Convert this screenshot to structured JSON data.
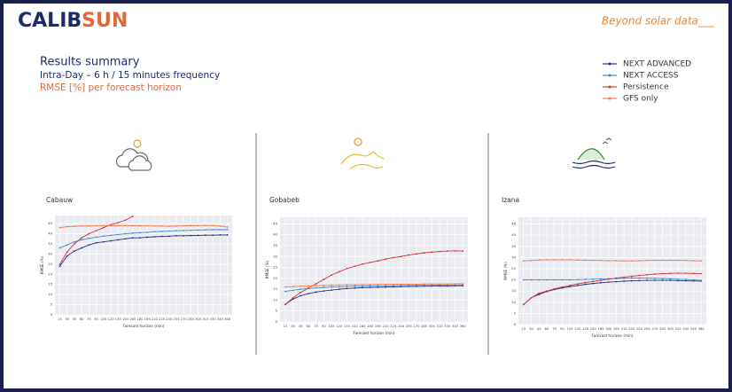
{
  "header": {
    "logo_a": "CALIB",
    "logo_b": "SUN",
    "tagline": "Beyond solar data___",
    "title": "Results summary",
    "subtitle": "Intra-Day  –  6 h / 15 minutes frequency",
    "metric": "RMSE [%] per forecast horizon"
  },
  "chart_data": [
    {
      "type": "line",
      "title": "Cabauw",
      "x_label": "Forecast horizon (min)",
      "y_label": "RMSE (%)",
      "x": [
        15,
        30,
        45,
        60,
        75,
        90,
        105,
        120,
        135,
        150,
        165,
        180,
        195,
        210,
        225,
        240,
        255,
        270,
        285,
        300,
        315,
        330,
        345,
        360
      ],
      "xlim": [
        5,
        370
      ],
      "xticks": [
        15,
        30,
        45,
        60,
        75,
        90,
        105,
        120,
        135,
        150,
        165,
        180,
        195,
        210,
        225,
        240,
        255,
        270,
        285,
        300,
        315,
        330,
        345,
        360
      ],
      "ylim": [
        0,
        49
      ],
      "yticks": [
        0,
        5,
        10,
        15,
        20,
        25,
        30,
        35,
        40,
        45
      ],
      "grid": true,
      "series": [
        {
          "name": "NEXT ADVANCED",
          "color": "#2b2f7a",
          "values": [
            24,
            29,
            31.5,
            33,
            34.5,
            35.5,
            36,
            36.5,
            37,
            37.5,
            38,
            38,
            38.3,
            38.5,
            38.7,
            38.8,
            39,
            39,
            39.1,
            39.2,
            39.3,
            39.3,
            39.4,
            39.4
          ]
        },
        {
          "name": "NEXT ACCESS",
          "color": "#3f8ed8",
          "values": [
            33,
            34.5,
            36,
            37,
            37.7,
            38.3,
            38.8,
            39.2,
            39.6,
            40,
            40.3,
            40.5,
            40.7,
            41,
            41.2,
            41.3,
            41.5,
            41.6,
            41.7,
            41.8,
            41.9,
            42,
            42,
            42
          ]
        },
        {
          "name": "Persistence",
          "color": "#d1353c",
          "values": [
            25,
            31,
            35,
            38,
            40,
            41.5,
            43,
            44.5,
            45.5,
            46.7,
            48.5,
            null,
            null,
            null,
            null,
            null,
            null,
            null,
            null,
            null,
            null,
            null,
            null,
            null
          ]
        },
        {
          "name": "GFS only",
          "color": "#f07a50",
          "values": [
            43,
            43.5,
            43.7,
            43.8,
            43.8,
            43.9,
            44,
            44,
            44,
            44,
            44,
            43.9,
            43.9,
            43.8,
            43.8,
            43.7,
            43.8,
            43.9,
            44,
            44,
            44.1,
            44,
            43.8,
            43.3
          ]
        }
      ]
    },
    {
      "type": "line",
      "title": "Gobabeb",
      "x_label": "Forecast horizon (min)",
      "y_label": "RMSE (%)",
      "x": [
        15,
        30,
        45,
        60,
        75,
        90,
        105,
        120,
        135,
        150,
        165,
        180,
        195,
        210,
        225,
        240,
        255,
        270,
        285,
        300,
        315,
        330,
        345,
        360
      ],
      "xlim": [
        5,
        370
      ],
      "xticks": [
        15,
        30,
        45,
        60,
        75,
        90,
        105,
        120,
        135,
        150,
        165,
        180,
        195,
        210,
        225,
        240,
        255,
        270,
        285,
        300,
        315,
        330,
        345,
        360
      ],
      "ylim": [
        0,
        48
      ],
      "yticks": [
        0,
        5,
        10,
        15,
        20,
        25,
        30,
        35,
        40,
        45
      ],
      "grid": true,
      "series": [
        {
          "color": "#2b2f7a",
          "values": [
            8,
            10.5,
            12,
            13,
            13.7,
            14.2,
            14.6,
            15,
            15.3,
            15.5,
            15.7,
            15.8,
            15.9,
            16,
            16.1,
            16.2,
            16.3,
            16.3,
            16.4,
            16.4,
            16.5,
            16.5,
            16.6,
            16.6
          ]
        },
        {
          "color": "#3f8ed8",
          "values": [
            14,
            14.5,
            15,
            15.3,
            15.6,
            15.8,
            16,
            16.1,
            16.2,
            16.3,
            16.4,
            16.5,
            16.5,
            16.6,
            16.6,
            16.7,
            16.7,
            16.8,
            16.8,
            16.8,
            16.9,
            16.9,
            16.9,
            17
          ]
        },
        {
          "color": "#d1353c",
          "values": [
            8,
            11,
            13.5,
            15.5,
            17.5,
            19.5,
            21.5,
            23,
            24.5,
            25.5,
            26.5,
            27.3,
            28,
            28.8,
            29.5,
            30,
            30.7,
            31.2,
            31.7,
            32,
            32.3,
            32.5,
            32.6,
            32.5
          ]
        },
        {
          "color": "#f07a50",
          "values": [
            16,
            16.2,
            16.4,
            16.5,
            16.6,
            16.7,
            16.8,
            16.9,
            17,
            17,
            17.1,
            17.1,
            17.2,
            17.2,
            17.2,
            17.3,
            17.3,
            17.3,
            17.4,
            17.4,
            17.4,
            17.4,
            17.5,
            17.5
          ]
        }
      ]
    },
    {
      "type": "line",
      "title": "Izana",
      "x_label": "Forecast horizon (min)",
      "y_label": "RMSE (%)",
      "x": [
        15,
        30,
        45,
        60,
        75,
        90,
        105,
        120,
        135,
        150,
        165,
        180,
        195,
        210,
        225,
        240,
        255,
        270,
        285,
        300,
        315,
        330,
        345,
        360
      ],
      "xlim": [
        5,
        370
      ],
      "xticks": [
        15,
        30,
        45,
        60,
        75,
        90,
        105,
        120,
        135,
        150,
        165,
        180,
        195,
        210,
        225,
        240,
        255,
        270,
        285,
        300,
        315,
        330,
        345,
        360
      ],
      "ylim": [
        0,
        48
      ],
      "yticks": [
        0,
        5,
        10,
        15,
        20,
        25,
        30,
        35,
        40,
        45
      ],
      "grid": true,
      "series": [
        {
          "color": "#2b2f7a",
          "values": [
            9,
            12,
            13.5,
            14.8,
            15.7,
            16.4,
            17,
            17.5,
            18,
            18.4,
            18.7,
            19,
            19.2,
            19.4,
            19.6,
            19.7,
            19.8,
            19.8,
            19.8,
            19.8,
            19.7,
            19.6,
            19.5,
            19.5
          ]
        },
        {
          "color": "#3f8ed8",
          "values": [
            20,
            20,
            20,
            20,
            20,
            20,
            20,
            20.1,
            20.2,
            20.3,
            20.4,
            20.5,
            20.6,
            20.7,
            20.8,
            20.8,
            20.8,
            20.7,
            20.6,
            20.5,
            20.3,
            20.2,
            20,
            19.8
          ]
        },
        {
          "color": "#d1353c",
          "values": [
            9,
            12,
            14,
            15,
            16,
            16.8,
            17.5,
            18.2,
            18.8,
            19.3,
            19.8,
            20.3,
            20.8,
            21.2,
            21.6,
            22,
            22.3,
            22.6,
            22.8,
            22.9,
            23,
            23,
            22.9,
            22.8
          ]
        },
        {
          "color": "#f07a50",
          "values": [
            28.5,
            28.7,
            28.9,
            29,
            29,
            29,
            29,
            28.9,
            28.8,
            28.8,
            28.7,
            28.6,
            28.6,
            28.5,
            28.5,
            28.6,
            28.7,
            28.8,
            28.8,
            28.8,
            28.8,
            28.7,
            28.6,
            28.5
          ]
        }
      ]
    }
  ]
}
